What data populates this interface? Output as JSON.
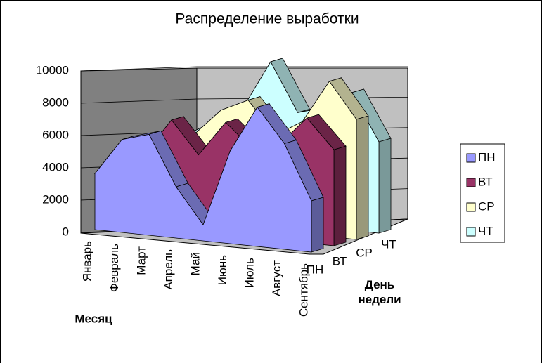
{
  "chart_data": {
    "type": "area3d",
    "title": "Распределение выработки",
    "x_label": "Месяц",
    "z_label": "День недели",
    "categories": [
      "Январь",
      "Февраль",
      "Март",
      "Апрель",
      "Май",
      "Июнь",
      "Июль",
      "Август",
      "Сентябрь"
    ],
    "series": [
      {
        "name": "ПН",
        "color": "#9999ff",
        "values": [
          3500,
          5800,
          6300,
          3200,
          1000,
          5800,
          8700,
          6600,
          3200
        ]
      },
      {
        "name": "ВТ",
        "color": "#993366",
        "values": [
          3000,
          4500,
          6800,
          4800,
          7000,
          5500,
          6000,
          7800,
          6000
        ]
      },
      {
        "name": "СР",
        "color": "#ffffcc",
        "values": [
          4000,
          5000,
          5500,
          7200,
          8000,
          6000,
          7000,
          9700,
          7500
        ]
      },
      {
        "name": "ЧТ",
        "color": "#ccffff",
        "values": [
          4000,
          5000,
          6000,
          7000,
          10000,
          7000,
          7500,
          8600,
          5700
        ]
      }
    ],
    "ylim": [
      0,
      10000
    ],
    "yticks": [
      0,
      2000,
      4000,
      6000,
      8000,
      10000
    ],
    "grid": true,
    "legend": "right"
  }
}
